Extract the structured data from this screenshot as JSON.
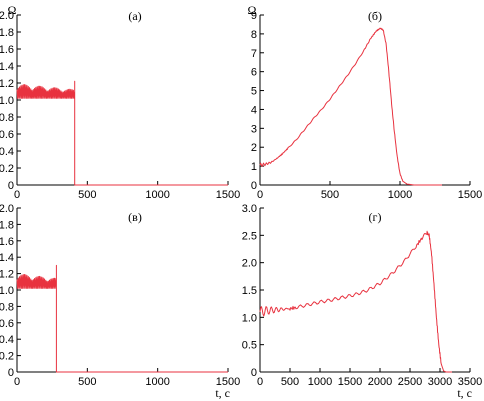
{
  "colors": {
    "series": "#e8323f",
    "axis": "#000000"
  },
  "chart_data": [
    {
      "id": "a",
      "type": "line",
      "title": "(а)",
      "ylabel": "Ω",
      "xlabel": "",
      "xlim": [
        0,
        1500
      ],
      "ylim": [
        0,
        2.0
      ],
      "xticks": [
        0,
        500,
        1000,
        1500
      ],
      "yticks": [
        0,
        0.2,
        0.4,
        0.6,
        0.8,
        1.0,
        1.2,
        1.4,
        1.6,
        1.8,
        2.0
      ],
      "xtick_labels": [
        "0",
        "500",
        "1000",
        "1500"
      ],
      "ytick_labels": [
        "0",
        "0.2",
        "0.4",
        "0.6",
        "0.8",
        "1.0",
        "1.2",
        "1.4",
        "1.6",
        "1.8",
        "2.0"
      ],
      "grid": false,
      "series": [
        {
          "style": "oscillating",
          "x": [
            0,
            410
          ],
          "base": 1.02,
          "amp_start": 0.17,
          "amp_end": 0.1,
          "spike": {
            "x": 410,
            "y": 1.22
          },
          "drop_to": 0.0,
          "end_x": 1500
        }
      ]
    },
    {
      "id": "b",
      "type": "line",
      "title": "(б)",
      "ylabel": "Ω",
      "xlabel": "",
      "xlim": [
        0,
        1500
      ],
      "ylim": [
        0,
        9
      ],
      "xticks": [
        0,
        500,
        1000,
        1500
      ],
      "yticks": [
        0,
        1,
        2,
        3,
        4,
        5,
        6,
        7,
        8,
        9
      ],
      "xtick_labels": [
        "0",
        "500",
        "1000",
        "1500"
      ],
      "ytick_labels": [
        "0",
        "1",
        "2",
        "3",
        "4",
        "5",
        "6",
        "7",
        "8",
        "9"
      ],
      "grid": false,
      "series": [
        {
          "style": "curve",
          "x": [
            0,
            40,
            80,
            120,
            160,
            200,
            260,
            320,
            380,
            440,
            500,
            560,
            620,
            680,
            740,
            790,
            830,
            860,
            880,
            900,
            920,
            940,
            960,
            980,
            1000,
            1020,
            1050,
            1100,
            1300
          ],
          "y": [
            1.05,
            1.1,
            1.2,
            1.4,
            1.65,
            1.95,
            2.4,
            2.95,
            3.5,
            4.0,
            4.55,
            5.15,
            5.75,
            6.4,
            7.1,
            7.75,
            8.15,
            8.3,
            8.2,
            7.5,
            6.0,
            4.3,
            2.8,
            1.5,
            0.6,
            0.2,
            0.05,
            0.0,
            0.0
          ],
          "oscillation": {
            "x_end": 120,
            "amp": 0.1
          }
        }
      ]
    },
    {
      "id": "v",
      "type": "line",
      "title": "(в)",
      "ylabel": "",
      "xlabel": "",
      "xlim": [
        0,
        1500
      ],
      "ylim": [
        0,
        2.0
      ],
      "xticks": [
        0,
        500,
        1000,
        1500
      ],
      "yticks": [
        0,
        0.2,
        0.4,
        0.6,
        0.8,
        1.0,
        1.2,
        1.4,
        1.6,
        1.8,
        2.0
      ],
      "xtick_labels": [
        "0",
        "500",
        "1000",
        "1500"
      ],
      "ytick_labels": [
        "0",
        "0.2",
        "0.4",
        "0.6",
        "0.8",
        "1.0",
        "1.2",
        "1.4",
        "1.6",
        "1.8",
        "2.0"
      ],
      "grid": false,
      "series": [
        {
          "style": "oscillating",
          "x": [
            0,
            280
          ],
          "base": 1.02,
          "amp_start": 0.18,
          "amp_end": 0.12,
          "spike": {
            "x": 280,
            "y": 1.3
          },
          "drop_to": 0.0,
          "end_x": 1500
        }
      ]
    },
    {
      "id": "g",
      "type": "line",
      "title": "(г)",
      "ylabel": "",
      "xlabel": "t, c",
      "xlim": [
        0,
        3500
      ],
      "ylim": [
        0,
        3.0
      ],
      "xticks": [
        0,
        500,
        1000,
        1500,
        2000,
        2500,
        3000,
        3500
      ],
      "yticks": [
        0,
        0.5,
        1.0,
        1.5,
        2.0,
        2.5,
        3.0
      ],
      "xtick_labels": [
        "0",
        "500",
        "1000",
        "1500",
        "2000",
        "2500",
        "3000",
        "3500"
      ],
      "ytick_labels": [
        "0",
        "0.5",
        "1.0",
        "1.5",
        "2.0",
        "2.5",
        "3.0"
      ],
      "grid": false,
      "series": [
        {
          "style": "curve",
          "x": [
            0,
            100,
            200,
            300,
            400,
            500,
            600,
            800,
            1000,
            1200,
            1400,
            1600,
            1800,
            2000,
            2200,
            2400,
            2600,
            2700,
            2780,
            2820,
            2860,
            2900,
            2940,
            2980,
            3020,
            3060,
            3100,
            3200
          ],
          "y": [
            1.1,
            1.12,
            1.13,
            1.14,
            1.15,
            1.16,
            1.18,
            1.23,
            1.28,
            1.32,
            1.37,
            1.42,
            1.5,
            1.62,
            1.8,
            2.02,
            2.3,
            2.45,
            2.55,
            2.5,
            2.15,
            1.6,
            1.0,
            0.5,
            0.15,
            0.02,
            0.0,
            0.0
          ],
          "oscillation": {
            "x_end": 500,
            "amp": 0.1
          }
        }
      ]
    }
  ],
  "x_axis_label_bottom": "t, c"
}
